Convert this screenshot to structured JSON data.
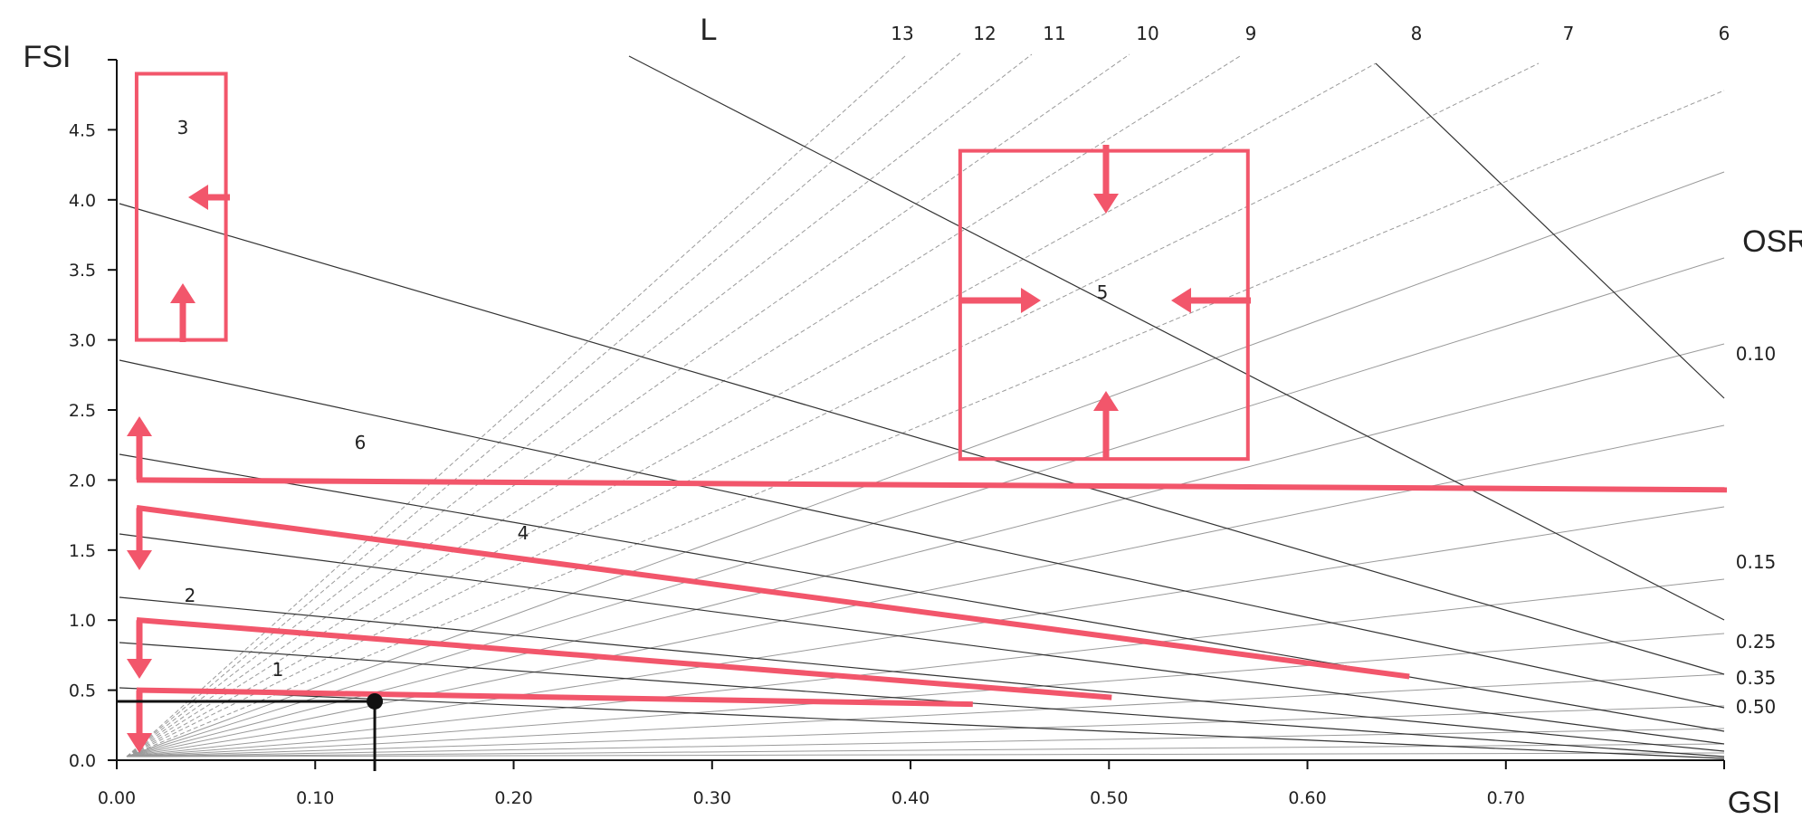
{
  "chart_data": {
    "type": "line",
    "title": "",
    "xlabel": "GSI",
    "ylabel": "FSI",
    "xlim": [
      0,
      0.81
    ],
    "ylim": [
      0,
      5.0
    ],
    "x_ticks": [
      "0.00",
      "0.10",
      "0.20",
      "0.30",
      "0.40",
      "0.50",
      "0.60",
      "0.70"
    ],
    "y_ticks": [
      "0.0",
      "0.5",
      "1.0",
      "1.5",
      "2.0",
      "2.5",
      "3.0",
      "3.5",
      "4.0",
      "4.5"
    ],
    "grid": false,
    "layer_lines": {
      "label": "L",
      "values": [
        "13",
        "12",
        "11",
        "10",
        "9",
        "8",
        "7",
        "6"
      ],
      "note": "rays from origin, FSI = L x GSI"
    },
    "osr_lines": {
      "label": "OSR",
      "labels": [
        "0.10",
        "0.15",
        "0.25",
        "0.35",
        "0.50"
      ]
    },
    "zones": [
      {
        "label": "1",
        "points": [
          [
            0.0,
            0.5
          ],
          [
            0.43,
            0.4
          ]
        ]
      },
      {
        "label": "2",
        "points": [
          [
            0.0,
            1.0
          ],
          [
            0.5,
            0.45
          ]
        ]
      },
      {
        "label": "4",
        "points": [
          [
            0.0,
            1.8
          ],
          [
            0.65,
            0.6
          ]
        ]
      },
      {
        "label": "6",
        "points": [
          [
            0.0,
            2.0
          ],
          [
            0.81,
            1.93
          ]
        ]
      },
      {
        "label": "3",
        "box": {
          "gsi": [
            0.01,
            0.055
          ],
          "fsi": [
            3.0,
            4.9
          ]
        }
      },
      {
        "label": "5",
        "box": {
          "gsi": [
            0.425,
            0.57
          ],
          "fsi": [
            2.15,
            4.35
          ]
        }
      }
    ],
    "marker_point": {
      "gsi": 0.13,
      "fsi": 0.42
    },
    "colors": {
      "zone": "#f2566b",
      "line": "#333333",
      "marker": "#111111"
    }
  }
}
